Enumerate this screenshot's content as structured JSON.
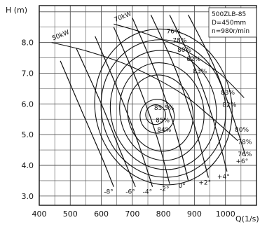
{
  "chart_data": {
    "type": "line",
    "title": "",
    "xlabel": "Q(1/s)",
    "ylabel": "H (m)",
    "xlim": [
      400,
      1100
    ],
    "ylim": [
      2.7,
      9.2
    ],
    "grid": true,
    "x_ticks": [
      "400",
      "500",
      "600",
      "700",
      "800",
      "900",
      "1000"
    ],
    "y_ticks": [
      "3.0",
      "4.0",
      "5.0",
      "6.0",
      "7.0",
      "8.0"
    ],
    "info_box": [
      "500ZLB-85",
      "D=450mm",
      "n=980r/min"
    ],
    "blade_angle_curves": [
      {
        "label": "-8°",
        "points": [
          [
            468,
            7.4
          ],
          [
            540,
            5.7
          ],
          [
            600,
            4.3
          ],
          [
            640,
            3.3
          ]
        ]
      },
      {
        "label": "-6°",
        "points": [
          [
            520,
            7.8
          ],
          [
            600,
            6.0
          ],
          [
            660,
            4.5
          ],
          [
            710,
            3.3
          ]
        ]
      },
      {
        "label": "-4°",
        "points": [
          [
            580,
            8.2
          ],
          [
            660,
            6.3
          ],
          [
            720,
            4.7
          ],
          [
            765,
            3.3
          ]
        ]
      },
      {
        "label": "-2°",
        "points": [
          [
            640,
            8.5
          ],
          [
            720,
            6.6
          ],
          [
            780,
            4.9
          ],
          [
            820,
            3.4
          ]
        ]
      },
      {
        "label": "0°",
        "points": [
          [
            700,
            8.8
          ],
          [
            780,
            6.9
          ],
          [
            840,
            5.1
          ],
          [
            880,
            3.5
          ]
        ]
      },
      {
        "label": "+2°",
        "points": [
          [
            760,
            8.9
          ],
          [
            840,
            7.1
          ],
          [
            900,
            5.3
          ],
          [
            945,
            3.6
          ]
        ]
      },
      {
        "label": "+4°",
        "points": [
          [
            820,
            8.9
          ],
          [
            900,
            7.2
          ],
          [
            960,
            5.5
          ],
          [
            1005,
            3.8
          ]
        ]
      },
      {
        "label": "+6°",
        "points": [
          [
            880,
            8.9
          ],
          [
            960,
            7.3
          ],
          [
            1020,
            5.7
          ],
          [
            1065,
            4.3
          ]
        ]
      }
    ],
    "efficiency_labels": [
      {
        "label": "76%",
        "x": 810,
        "y": 8.3
      },
      {
        "label": "78%",
        "x": 830,
        "y": 8.0
      },
      {
        "label": "80%",
        "x": 845,
        "y": 7.7
      },
      {
        "label": "82%",
        "x": 875,
        "y": 7.4
      },
      {
        "label": "83%",
        "x": 895,
        "y": 7.0
      },
      {
        "label": "83%",
        "x": 985,
        "y": 6.3
      },
      {
        "label": "82%",
        "x": 990,
        "y": 5.9
      },
      {
        "label": "80%",
        "x": 1030,
        "y": 5.1
      },
      {
        "label": "78%",
        "x": 1040,
        "y": 4.7
      },
      {
        "label": "76%",
        "x": 1040,
        "y": 4.3
      },
      {
        "label": "85.5%",
        "x": 770,
        "y": 5.8
      },
      {
        "label": "85%",
        "x": 775,
        "y": 5.4
      },
      {
        "label": "84%",
        "x": 780,
        "y": 5.1
      }
    ],
    "efficiency_contours": [
      {
        "name": "76%",
        "center": [
          800,
          5.9
        ],
        "rx": 220,
        "ry": 2.55
      },
      {
        "name": "78%",
        "center": [
          800,
          5.85
        ],
        "rx": 200,
        "ry": 2.25
      },
      {
        "name": "80%",
        "center": [
          800,
          5.8
        ],
        "rx": 170,
        "ry": 1.95
      },
      {
        "name": "82%",
        "center": [
          795,
          5.75
        ],
        "rx": 135,
        "ry": 1.6
      },
      {
        "name": "83%",
        "center": [
          790,
          5.7
        ],
        "rx": 105,
        "ry": 1.25
      },
      {
        "name": "84%",
        "center": [
          780,
          5.6
        ],
        "rx": 55,
        "ry": 0.55
      },
      {
        "name": "85%",
        "center": [
          775,
          5.65
        ],
        "rx": 32,
        "ry": 0.32
      }
    ],
    "power_curves": [
      {
        "label": "50kW",
        "points": [
          [
            440,
            8.0
          ],
          [
            560,
            7.7
          ],
          [
            700,
            7.2
          ],
          [
            850,
            6.4
          ],
          [
            950,
            5.6
          ],
          [
            1040,
            4.8
          ]
        ]
      },
      {
        "label": "70kW",
        "points": [
          [
            640,
            8.6
          ],
          [
            740,
            8.3
          ],
          [
            860,
            7.8
          ],
          [
            980,
            7.0
          ],
          [
            1060,
            6.2
          ]
        ]
      }
    ]
  }
}
